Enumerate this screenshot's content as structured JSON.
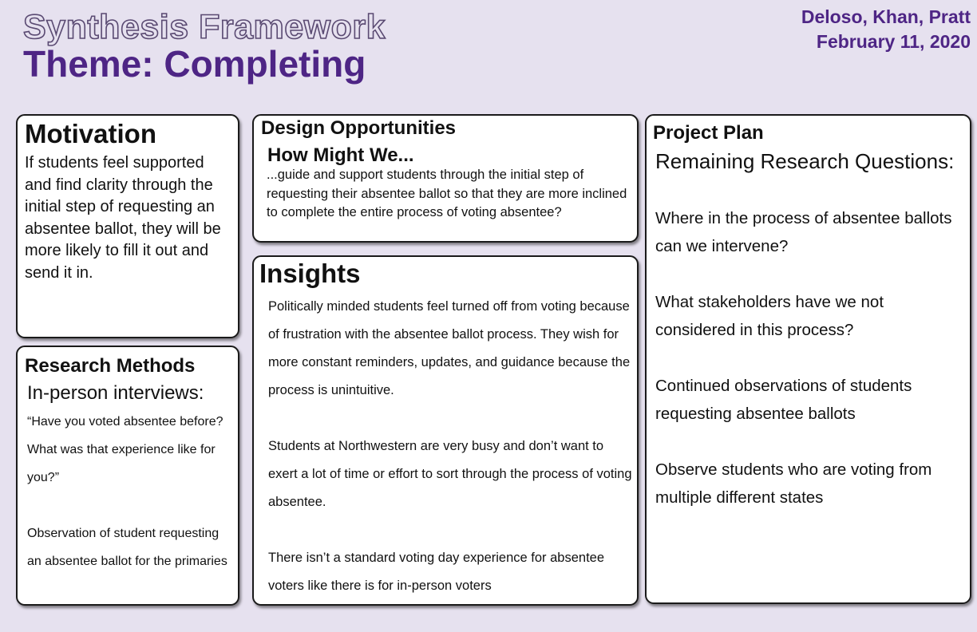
{
  "header": {
    "framework_title": "Synthesis Framework",
    "theme_title": "Theme: Completing",
    "authors": "Deloso, Khan, Pratt",
    "date": "February 11, 2020"
  },
  "motivation": {
    "heading": "Motivation",
    "text": "If students feel supported and find clarity through the initial step of requesting an absentee ballot, they will be more likely to fill it out and send it in."
  },
  "research_methods": {
    "heading": "Research Methods",
    "subheading": "In-person interviews:",
    "items": [
      "“Have you voted absentee before? What was that experience like for you?”",
      "Observation of student requesting an absentee ballot for the primaries"
    ]
  },
  "design_opportunities": {
    "heading": "Design Opportunities",
    "subheading": "How Might We...",
    "text": "...guide and support students through the initial step of requesting their absentee ballot so that they are more inclined to complete the entire process of voting absentee?"
  },
  "insights": {
    "heading": "Insights",
    "items": [
      "Politically minded students feel turned off from voting because of frustration with the absentee ballot process. They wish for more constant reminders, updates, and guidance because the process is unintuitive.",
      "Students at Northwestern are very busy and don’t want to exert a lot of time or effort to sort through the process of voting absentee.",
      "There isn’t a standard voting day experience for absentee voters like there is for in-person voters"
    ]
  },
  "project_plan": {
    "heading": "Project Plan",
    "subheading": "Remaining Research Questions:",
    "items": [
      "Where in the process of absentee ballots can we intervene?",
      "What stakeholders have we not considered in this process?",
      "Continued observations of students requesting absentee ballots",
      "Observe students who are voting from multiple different states"
    ]
  },
  "colors": {
    "background": "#e6e1ef",
    "accent_purple": "#4e2585",
    "card_background": "#ffffff",
    "card_border": "#1a1a1a"
  }
}
